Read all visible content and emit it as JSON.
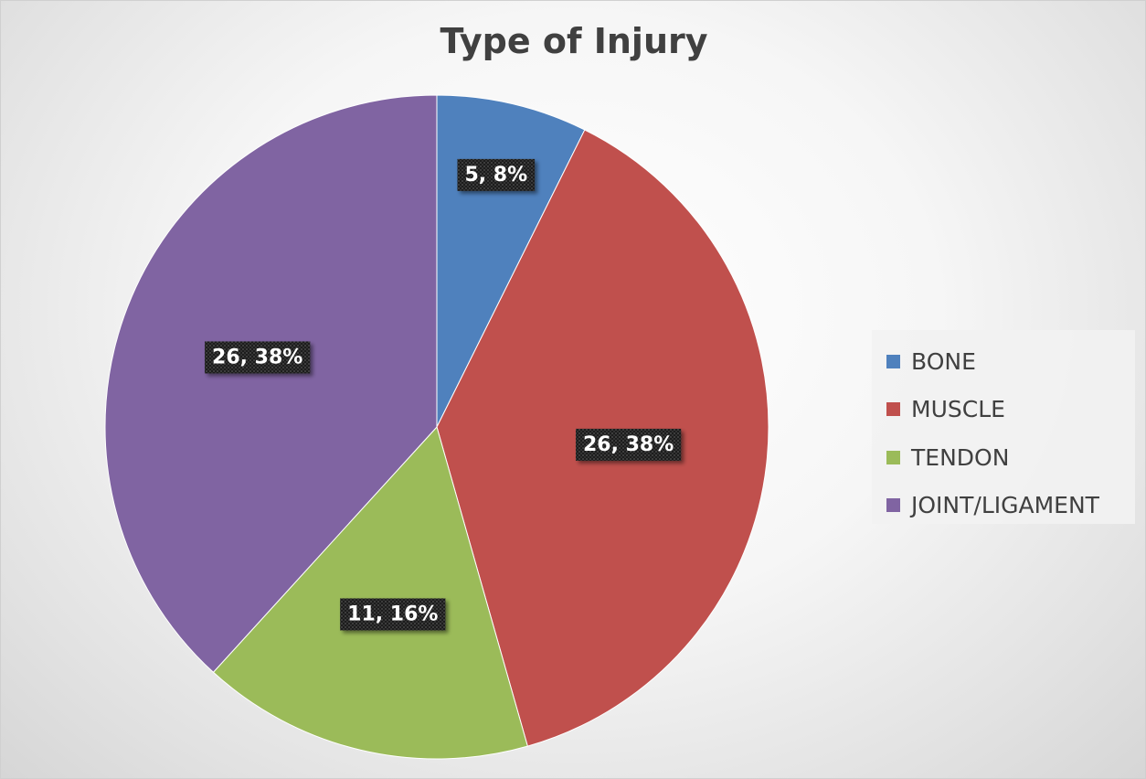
{
  "chart_data": {
    "type": "pie",
    "title": "Type of Injury",
    "categories": [
      "BONE",
      "MUSCLE",
      "TENDON",
      "JOINT/LIGAMENT"
    ],
    "values": [
      5,
      26,
      11,
      26
    ],
    "percentages": [
      8,
      38,
      16,
      38
    ],
    "data_labels": [
      "5, 8%",
      "26, 38%",
      "11, 16%",
      "26, 38%"
    ],
    "colors": [
      "#4F81BD",
      "#C0504D",
      "#9BBB59",
      "#8064A2"
    ],
    "legend_position": "right",
    "start_angle": "12 o'clock, clockwise"
  }
}
